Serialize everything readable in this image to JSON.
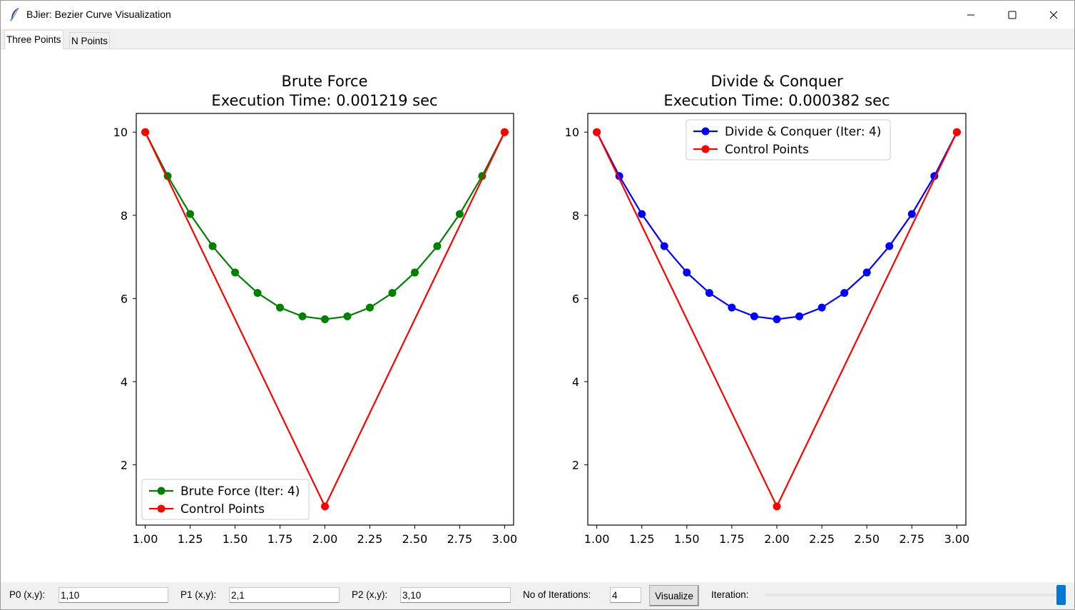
{
  "window": {
    "title": "BJier: Bezier Curve Visualization"
  },
  "tabs": [
    {
      "label": "Three Points",
      "active": true
    },
    {
      "label": "N Points",
      "active": false
    }
  ],
  "chart_data": [
    {
      "type": "line",
      "title": "Brute Force",
      "subtitle": "Execution Time: 0.001219 sec",
      "xlim": [
        0.95,
        3.05
      ],
      "ylim": [
        0.55,
        10.45
      ],
      "xticks": [
        "1.00",
        "1.25",
        "1.50",
        "1.75",
        "2.00",
        "2.25",
        "2.50",
        "2.75",
        "3.00"
      ],
      "yticks": [
        "2",
        "4",
        "6",
        "8",
        "10"
      ],
      "legend": "lower-left",
      "series": [
        {
          "name": "Brute Force (Iter: 4)",
          "color": "#008000",
          "x": [
            1.0,
            1.125,
            1.25,
            1.375,
            1.5,
            1.625,
            1.75,
            1.875,
            2.0,
            2.125,
            2.25,
            2.375,
            2.5,
            2.625,
            2.75,
            2.875,
            3.0
          ],
          "y": [
            10,
            8.945,
            8.031,
            7.258,
            6.625,
            6.133,
            5.781,
            5.57,
            5.5,
            5.57,
            5.781,
            6.133,
            6.625,
            7.258,
            8.031,
            8.945,
            10
          ]
        },
        {
          "name": "Control Points",
          "color": "#ff0000",
          "x": [
            1,
            2,
            3
          ],
          "y": [
            10,
            1,
            10
          ]
        }
      ]
    },
    {
      "type": "line",
      "title": "Divide & Conquer",
      "subtitle": "Execution Time: 0.000382 sec",
      "xlim": [
        0.95,
        3.05
      ],
      "ylim": [
        0.55,
        10.45
      ],
      "xticks": [
        "1.00",
        "1.25",
        "1.50",
        "1.75",
        "2.00",
        "2.25",
        "2.50",
        "2.75",
        "3.00"
      ],
      "yticks": [
        "2",
        "4",
        "6",
        "8",
        "10"
      ],
      "legend": "upper-center",
      "series": [
        {
          "name": "Divide & Conquer (Iter: 4)",
          "color": "#0000ff",
          "x": [
            1.0,
            1.125,
            1.25,
            1.375,
            1.5,
            1.625,
            1.75,
            1.875,
            2.0,
            2.125,
            2.25,
            2.375,
            2.5,
            2.625,
            2.75,
            2.875,
            3.0
          ],
          "y": [
            10,
            8.945,
            8.031,
            7.258,
            6.625,
            6.133,
            5.781,
            5.57,
            5.5,
            5.57,
            5.781,
            6.133,
            6.625,
            7.258,
            8.031,
            8.945,
            10
          ]
        },
        {
          "name": "Control Points",
          "color": "#ff0000",
          "x": [
            1,
            2,
            3
          ],
          "y": [
            10,
            1,
            10
          ]
        }
      ]
    }
  ],
  "controls": {
    "p0_label": "P0 (x,y):",
    "p0_value": "1,10",
    "p1_label": "P1 (x,y):",
    "p1_value": "2,1",
    "p2_label": "P2 (x,y):",
    "p2_value": "3,10",
    "iterations_label": "No of Iterations:",
    "iterations_value": "4",
    "visualize_label": "Visualize",
    "iteration_label": "Iteration:",
    "iteration_slider_fraction": 1.0
  },
  "icons": {
    "app": "feather-icon",
    "minimize": "minimize-icon",
    "maximize": "maximize-icon",
    "close": "close-icon"
  }
}
